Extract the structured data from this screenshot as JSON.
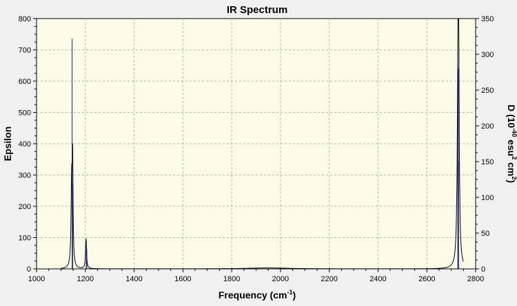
{
  "chart_data": {
    "type": "line",
    "title": "IR Spectrum",
    "xlabel": "Frequency (cm",
    "xlabel_sup": "-1",
    "xlabel_tail": ")",
    "ylabel": "Epsilon",
    "y2label_prefix": "D (10",
    "y2label_sup1": "-40",
    "y2label_mid": " esu",
    "y2label_sup2": "2",
    "y2label_mid2": " cm",
    "y2label_sup3": "2",
    "y2label_tail": ")",
    "xlim": [
      1000,
      2750
    ],
    "ylim": [
      0,
      800
    ],
    "y2lim": [
      0,
      350
    ],
    "x_ticks": [
      "1000",
      "1200",
      "1400",
      "1600",
      "1800",
      "2000",
      "2200",
      "2400",
      "2600",
      "2800"
    ],
    "x_tick_values": [
      1000,
      1200,
      1400,
      1600,
      1800,
      2000,
      2200,
      2400,
      2600,
      2800
    ],
    "y_ticks": [
      "0",
      "100",
      "200",
      "300",
      "400",
      "500",
      "600",
      "700",
      "800"
    ],
    "y_tick_values": [
      0,
      100,
      200,
      300,
      400,
      500,
      600,
      700,
      800
    ],
    "y2_ticks": [
      "0",
      "50",
      "100",
      "150",
      "200",
      "250",
      "300",
      "350"
    ],
    "y2_tick_values": [
      0,
      50,
      100,
      150,
      200,
      250,
      300,
      350
    ],
    "grid": true,
    "series": [
      {
        "kind": "spectrum",
        "axis": "left",
        "color": "#000000",
        "baseline": 2,
        "peaks": [
          {
            "x": 1144,
            "height": 270,
            "width": 6
          },
          {
            "x": 1148,
            "height": 300,
            "width": 4
          },
          {
            "x": 1203,
            "height": 95,
            "width": 5
          },
          {
            "x": 1950,
            "height": 3,
            "width": 200
          },
          {
            "x": 2728,
            "height": 690,
            "width": 7
          },
          {
            "x": 2731,
            "height": 360,
            "width": 5
          }
        ]
      },
      {
        "kind": "sticks",
        "axis": "right",
        "color": "#1a1a7a",
        "sticks": [
          {
            "x": 1146,
            "y": 322
          },
          {
            "x": 1148,
            "y": 120
          },
          {
            "x": 1204,
            "y": 32
          },
          {
            "x": 1206,
            "y": 28
          },
          {
            "x": 2727,
            "y": 302
          },
          {
            "x": 2729,
            "y": 280
          },
          {
            "x": 2730,
            "y": 151
          }
        ]
      }
    ]
  }
}
